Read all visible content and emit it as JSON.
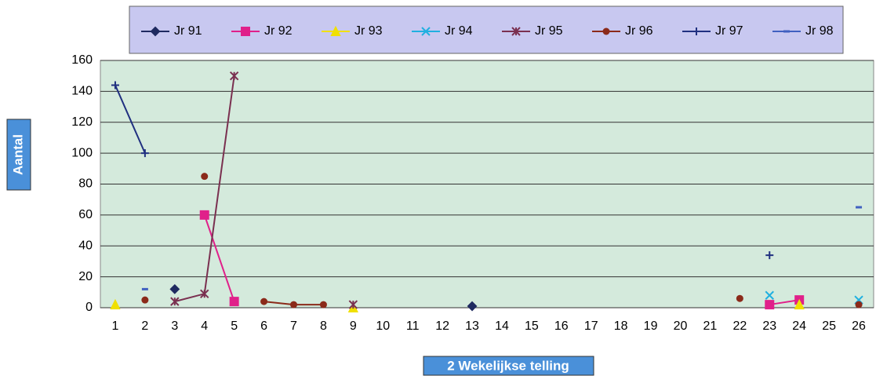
{
  "chart_data": {
    "type": "line",
    "x_label": "2 Wekelijkse telling",
    "y_label": "Aantal",
    "categories": [
      "1",
      "2",
      "3",
      "4",
      "5",
      "6",
      "7",
      "8",
      "9",
      "10",
      "11",
      "12",
      "13",
      "14",
      "15",
      "16",
      "17",
      "18",
      "19",
      "20",
      "21",
      "22",
      "23",
      "24",
      "25",
      "26"
    ],
    "series": [
      {
        "name": "Jr 91",
        "color": "#1f2a60",
        "marker": "diamond",
        "values": [
          null,
          null,
          12,
          null,
          null,
          null,
          null,
          null,
          null,
          null,
          null,
          null,
          1,
          null,
          null,
          null,
          null,
          null,
          null,
          null,
          null,
          null,
          null,
          null,
          null,
          null
        ]
      },
      {
        "name": "Jr 92",
        "color": "#e0208a",
        "marker": "square",
        "values": [
          null,
          null,
          null,
          60,
          4,
          null,
          null,
          null,
          null,
          null,
          null,
          null,
          null,
          null,
          null,
          null,
          null,
          null,
          null,
          null,
          null,
          null,
          2,
          5,
          null,
          null
        ]
      },
      {
        "name": "Jr 93",
        "color": "#f0e000",
        "marker": "triangle",
        "values": [
          2,
          null,
          null,
          null,
          null,
          null,
          null,
          null,
          0,
          null,
          null,
          null,
          null,
          null,
          null,
          null,
          null,
          null,
          null,
          null,
          null,
          null,
          null,
          2,
          null,
          null
        ]
      },
      {
        "name": "Jr 94",
        "color": "#20b0e0",
        "marker": "x",
        "values": [
          null,
          null,
          null,
          null,
          null,
          null,
          null,
          null,
          null,
          null,
          null,
          null,
          null,
          null,
          null,
          null,
          null,
          null,
          null,
          null,
          null,
          null,
          8,
          null,
          null,
          5
        ]
      },
      {
        "name": "Jr 95",
        "color": "#7a3050",
        "marker": "star",
        "values": [
          null,
          null,
          4,
          9,
          150,
          null,
          null,
          null,
          2,
          null,
          null,
          null,
          null,
          null,
          null,
          null,
          null,
          null,
          null,
          null,
          null,
          null,
          null,
          null,
          null,
          null
        ]
      },
      {
        "name": "Jr 96",
        "color": "#8b2a1a",
        "marker": "circle",
        "values": [
          null,
          5,
          null,
          85,
          null,
          4,
          2,
          2,
          null,
          null,
          null,
          null,
          null,
          null,
          null,
          null,
          null,
          null,
          null,
          null,
          null,
          6,
          null,
          null,
          null,
          2
        ]
      },
      {
        "name": "Jr 97",
        "color": "#203080",
        "marker": "plus",
        "values": [
          144,
          100,
          null,
          null,
          null,
          null,
          null,
          null,
          null,
          null,
          null,
          null,
          null,
          null,
          null,
          null,
          null,
          null,
          null,
          null,
          null,
          null,
          34,
          null,
          null,
          null
        ]
      },
      {
        "name": "Jr 98",
        "color": "#4060c0",
        "marker": "dash",
        "values": [
          null,
          12,
          null,
          null,
          null,
          null,
          null,
          null,
          null,
          null,
          null,
          null,
          null,
          null,
          null,
          null,
          null,
          null,
          null,
          null,
          null,
          null,
          null,
          null,
          null,
          65
        ]
      }
    ],
    "ylim": [
      0,
      160
    ],
    "yticks": [
      0,
      20,
      40,
      60,
      80,
      100,
      120,
      140,
      160
    ],
    "grid": true
  }
}
